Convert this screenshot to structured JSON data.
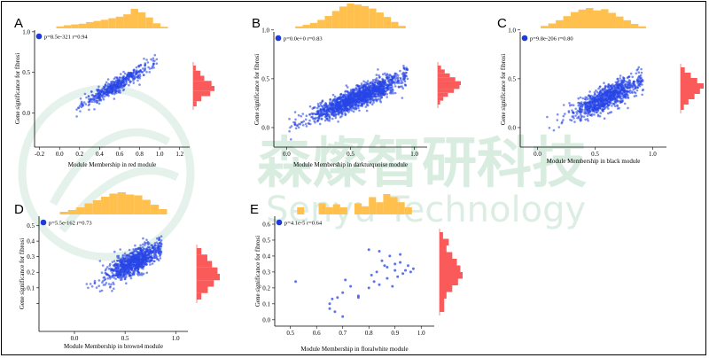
{
  "watermark": {
    "cn": "森燦智研科技",
    "en": "Senyu Technology"
  },
  "colors": {
    "point": "#2846e6",
    "top_hist": "#ffc04d",
    "right_hist": "#fa5a5a",
    "legend_dot": "#1e3ad8"
  },
  "chart_data": [
    {
      "id": "A",
      "panel_label": "A",
      "type": "scatter",
      "title": "",
      "xlabel": "Module Membership in red module",
      "ylabel": "Gene significance for fibrosi",
      "xlim": [
        -0.25,
        1.3
      ],
      "ylim": [
        -0.42,
        1.02
      ],
      "xticks": [
        -0.2,
        0.0,
        0.2,
        0.4,
        0.6,
        0.8,
        1.0,
        1.2
      ],
      "xtick_labels": [
        "-0.2",
        "0.0",
        "0.2",
        "0.4",
        "0.6",
        "0.8",
        "1.0",
        "1.2"
      ],
      "yticks": [
        0.0,
        0.5,
        1.0
      ],
      "ytick_labels": [
        "0.0",
        "0.5",
        "1.0"
      ],
      "legend": "p=8.5e-321 r=0.94",
      "n_points": 480,
      "cloud": {
        "x_mean": 0.58,
        "x_sd": 0.17,
        "x_min": 0.17,
        "x_max": 0.98,
        "slope": 0.72,
        "intercept": -0.07,
        "noise": 0.045,
        "cap_x": 0.0,
        "cap_y": 9
      },
      "top_hist": [
        0.1,
        0.16,
        0.2,
        0.24,
        0.32,
        0.38,
        0.44,
        0.52,
        0.6,
        0.72,
        1.0,
        0.82,
        0.56,
        0.26,
        0.08
      ],
      "right_hist": [
        0.12,
        0.34,
        0.52,
        0.86,
        1.0,
        0.8,
        0.38,
        0.16
      ]
    },
    {
      "id": "B",
      "panel_label": "B",
      "type": "scatter",
      "title": "",
      "xlabel": "Module Membership in darkturquoise module",
      "ylabel": "Gene significance for fibrosi",
      "xlim": [
        -0.1,
        1.1
      ],
      "ylim": [
        -0.2,
        0.98
      ],
      "xticks": [
        0.0,
        0.5,
        1.0
      ],
      "xtick_labels": [
        "0.0",
        "0.5",
        "1.0"
      ],
      "yticks": [
        0.0,
        0.5,
        1.0
      ],
      "ytick_labels": [
        "0.0",
        "0.5",
        "1.0"
      ],
      "legend": "p=0.0e+0 r=0.83",
      "n_points": 1500,
      "cloud": {
        "x_mean": 0.55,
        "x_sd": 0.18,
        "x_min": 0.02,
        "x_max": 0.95,
        "slope": 0.55,
        "intercept": 0.0,
        "noise": 0.055,
        "cap_x": 0.0,
        "cap_y": 9
      },
      "top_hist": [
        0.08,
        0.14,
        0.22,
        0.34,
        0.5,
        0.7,
        0.88,
        1.0,
        0.96,
        0.9,
        0.8,
        0.64,
        0.46,
        0.26,
        0.1
      ],
      "right_hist": [
        0.14,
        0.3,
        0.52,
        0.76,
        1.0,
        0.94,
        0.7,
        0.44,
        0.24,
        0.1
      ]
    },
    {
      "id": "C",
      "panel_label": "C",
      "type": "scatter",
      "title": "",
      "xlabel": "Module Membership in black module",
      "ylabel": "Gene significance for fibrosi",
      "xlim": [
        -0.15,
        1.12
      ],
      "ylim": [
        -0.2,
        0.98
      ],
      "xticks": [
        0.0,
        0.5,
        1.0
      ],
      "xtick_labels": [
        "0.0",
        "0.5",
        "1.0"
      ],
      "yticks": [
        0.0,
        0.5,
        1.0
      ],
      "ytick_labels": [
        "0.0",
        "0.5",
        "1.0"
      ],
      "legend": "p=9.8e-206 r=0.80",
      "n_points": 900,
      "cloud": {
        "x_mean": 0.6,
        "x_sd": 0.15,
        "x_min": 0.0,
        "x_max": 0.92,
        "slope": 0.55,
        "intercept": -0.02,
        "noise": 0.06,
        "cap_x": 0.0,
        "cap_y": 9
      },
      "top_hist": [
        0.12,
        0.24,
        0.4,
        0.6,
        0.8,
        0.92,
        1.0,
        0.88,
        0.94,
        0.76,
        0.58,
        0.4,
        0.22,
        0.1
      ],
      "right_hist": [
        0.18,
        0.44,
        0.72,
        1.0,
        0.84,
        0.6,
        0.34,
        0.14
      ]
    },
    {
      "id": "D",
      "panel_label": "D",
      "type": "scatter",
      "title": "",
      "xlabel": "Module Membership in brown4 module",
      "ylabel": "Gene significance for fibrosi",
      "xlim": [
        -0.35,
        1.12
      ],
      "ylim": [
        -0.18,
        0.56
      ],
      "xticks": [
        0.0,
        0.5,
        1.0
      ],
      "xtick_labels": [
        "0.0",
        "0.5",
        "1.0"
      ],
      "yticks": [
        0.0,
        0.1,
        0.2,
        0.3,
        0.4,
        0.5
      ],
      "ytick_labels": [
        "",
        "0.1",
        "0.2",
        "0.3",
        "0.4",
        "0.5"
      ],
      "legend": "p=5.5e-162 r=0.73",
      "n_points": 900,
      "cloud": {
        "x_mean": 0.58,
        "x_sd": 0.14,
        "x_min": 0.12,
        "x_max": 0.86,
        "slope": 0.33,
        "intercept": 0.07,
        "noise": 0.04,
        "cap_x": 0.0,
        "cap_y": 9
      },
      "top_hist": [
        0.12,
        0.2,
        0.32,
        0.5,
        0.64,
        0.8,
        0.94,
        1.0,
        0.9,
        0.86,
        0.66,
        0.44,
        0.24
      ],
      "right_hist": [
        0.2,
        0.46,
        0.66,
        0.9,
        1.0,
        0.74,
        0.48,
        0.2
      ]
    },
    {
      "id": "E",
      "panel_label": "E",
      "type": "scatter",
      "title": "",
      "xlabel": "Module Membership in floralwhite module",
      "ylabel": "Gene significance for fibrosi",
      "xlim": [
        0.44,
        1.05
      ],
      "ylim": [
        -0.04,
        0.65
      ],
      "xticks": [
        0.5,
        0.6,
        0.7,
        0.8,
        0.9,
        1.0
      ],
      "xtick_labels": [
        "0.5",
        "0.6",
        "0.7",
        "0.8",
        "0.9",
        "1.0"
      ],
      "yticks": [
        0.0,
        0.1,
        0.2,
        0.3,
        0.4,
        0.5,
        0.6
      ],
      "ytick_labels": [
        "0.0",
        "0.1",
        "0.2",
        "0.3",
        "0.4",
        "0.5",
        "0.6"
      ],
      "legend": "p=4.1e-5 r=0.64",
      "points": [
        [
          0.52,
          0.24
        ],
        [
          0.65,
          0.07
        ],
        [
          0.65,
          0.1
        ],
        [
          0.66,
          0.13
        ],
        [
          0.67,
          0.05
        ],
        [
          0.68,
          0.14
        ],
        [
          0.7,
          0.17
        ],
        [
          0.7,
          0.02
        ],
        [
          0.71,
          0.25
        ],
        [
          0.73,
          0.21
        ],
        [
          0.76,
          0.15
        ],
        [
          0.76,
          0.14
        ],
        [
          0.8,
          0.2
        ],
        [
          0.8,
          0.44
        ],
        [
          0.81,
          0.28
        ],
        [
          0.82,
          0.24
        ],
        [
          0.83,
          0.3
        ],
        [
          0.84,
          0.22
        ],
        [
          0.84,
          0.43
        ],
        [
          0.85,
          0.37
        ],
        [
          0.86,
          0.34
        ],
        [
          0.87,
          0.33
        ],
        [
          0.87,
          0.26
        ],
        [
          0.88,
          0.4
        ],
        [
          0.89,
          0.21
        ],
        [
          0.9,
          0.31
        ],
        [
          0.9,
          0.35
        ],
        [
          0.91,
          0.27
        ],
        [
          0.92,
          0.36
        ],
        [
          0.92,
          0.41
        ],
        [
          0.93,
          0.29
        ],
        [
          0.94,
          0.31
        ],
        [
          0.95,
          0.34
        ],
        [
          0.96,
          0.3
        ],
        [
          0.97,
          0.32
        ]
      ],
      "top_hist": [
        0.35,
        0,
        0,
        0.55,
        0.35,
        0.5,
        0.35,
        0,
        0.55,
        0.4,
        0.85,
        0.6,
        1.0,
        0.85,
        0.6,
        0.35
      ],
      "right_hist": [
        0.15,
        0.4,
        0.3,
        0.55,
        0.75,
        0.9,
        1.0,
        0.8,
        0.55,
        0.3,
        0.2,
        0.2
      ]
    }
  ]
}
